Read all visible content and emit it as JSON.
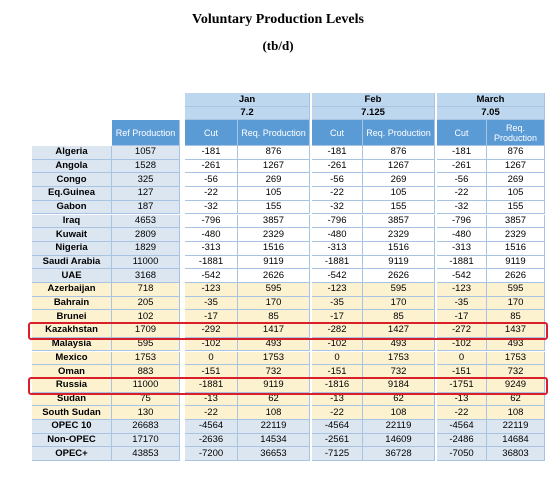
{
  "header": {
    "title": "Voluntary Production Levels",
    "subtitle": "(tb/d)"
  },
  "table": {
    "ref_header": "Ref Production",
    "months": [
      {
        "name": "Jan",
        "value": "7.2",
        "cut_header": "Cut",
        "req_header": "Req. Production"
      },
      {
        "name": "Feb",
        "value": "7.125",
        "cut_header": "Cut",
        "req_header": "Req. Production"
      },
      {
        "name": "March",
        "value": "7.05",
        "cut_header": "Cut",
        "req_header": "Req. Production"
      }
    ],
    "rows": [
      [
        "Algeria",
        1057,
        -181,
        876,
        -181,
        876,
        -181,
        876
      ],
      [
        "Angola",
        1528,
        -261,
        1267,
        -261,
        1267,
        -261,
        1267
      ],
      [
        "Congo",
        325,
        -56,
        269,
        -56,
        269,
        -56,
        269
      ],
      [
        "Eq.Guinea",
        127,
        -22,
        105,
        -22,
        105,
        -22,
        105
      ],
      [
        "Gabon",
        187,
        -32,
        155,
        -32,
        155,
        -32,
        155
      ],
      [
        "Iraq",
        4653,
        -796,
        3857,
        -796,
        3857,
        -796,
        3857
      ],
      [
        "Kuwait",
        2809,
        -480,
        2329,
        -480,
        2329,
        -480,
        2329
      ],
      [
        "Nigeria",
        1829,
        -313,
        1516,
        -313,
        1516,
        -313,
        1516
      ],
      [
        "Saudi Arabia",
        11000,
        -1881,
        9119,
        -1881,
        9119,
        -1881,
        9119
      ],
      [
        "UAE",
        3168,
        -542,
        2626,
        -542,
        2626,
        -542,
        2626
      ],
      [
        "Azerbaijan",
        718,
        -123,
        595,
        -123,
        595,
        -123,
        595
      ],
      [
        "Bahrain",
        205,
        -35,
        170,
        -35,
        170,
        -35,
        170
      ],
      [
        "Brunei",
        102,
        -17,
        85,
        -17,
        85,
        -17,
        85
      ],
      [
        "Kazakhstan",
        1709,
        -292,
        1417,
        -282,
        1427,
        -272,
        1437
      ],
      [
        "Malaysia",
        595,
        -102,
        493,
        -102,
        493,
        -102,
        493
      ],
      [
        "Mexico",
        1753,
        0,
        1753,
        0,
        1753,
        0,
        1753
      ],
      [
        "Oman",
        883,
        -151,
        732,
        -151,
        732,
        -151,
        732
      ],
      [
        "Russia",
        11000,
        -1881,
        9119,
        -1816,
        9184,
        -1751,
        9249
      ],
      [
        "Sudan",
        75,
        -13,
        62,
        -13,
        62,
        -13,
        62
      ],
      [
        "South Sudan",
        130,
        -22,
        108,
        -22,
        108,
        -22,
        108
      ],
      [
        "OPEC 10",
        26683,
        -4564,
        22119,
        -4564,
        22119,
        -4564,
        22119
      ],
      [
        "Non-OPEC",
        17170,
        -2636,
        14534,
        -2561,
        14609,
        -2486,
        14684
      ],
      [
        "OPEC+",
        43853,
        -7200,
        36653,
        -7125,
        36728,
        -7050,
        36803
      ]
    ]
  }
}
